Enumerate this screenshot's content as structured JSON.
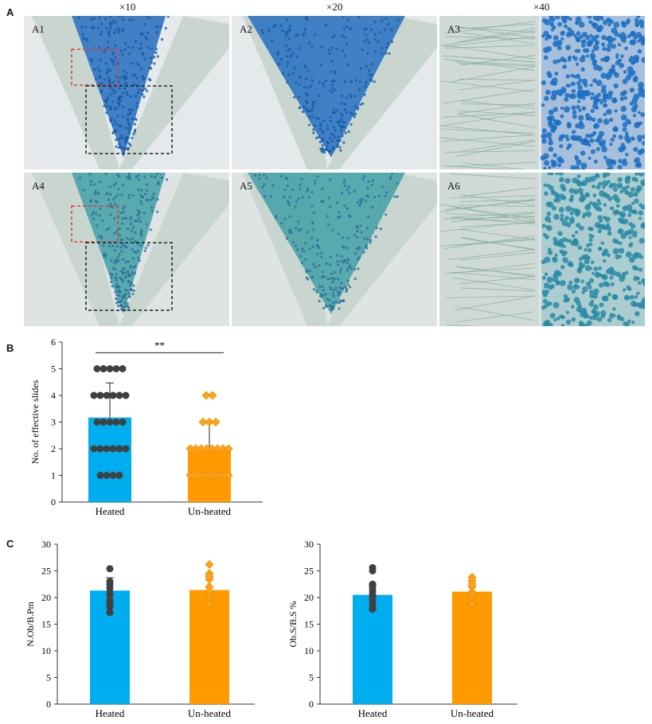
{
  "panel_labels": {
    "a": "A",
    "b": "B",
    "c": "C"
  },
  "magnifications": [
    "×10",
    "×20",
    "×40"
  ],
  "micrographs": [
    {
      "label": "A1",
      "stain": "blue",
      "scale": "low",
      "boxes": true
    },
    {
      "label": "A2",
      "stain": "blue",
      "scale": "mid",
      "boxes": false
    },
    {
      "label": "A3",
      "stain": "blue",
      "scale": "high",
      "boxes": false
    },
    {
      "label": "A4",
      "stain": "teal",
      "scale": "low",
      "boxes": true
    },
    {
      "label": "A5",
      "stain": "teal",
      "scale": "mid",
      "boxes": false
    },
    {
      "label": "A6",
      "stain": "teal",
      "scale": "high",
      "boxes": false
    }
  ],
  "colors": {
    "heated": "#00adef",
    "unheated": "#ff9a00",
    "heated_points": "#404040",
    "unheated_points": "#ffa31a",
    "tissue_blue": "#2f74c0",
    "tissue_teal": "#4aa3a8",
    "box_red": "#e53935",
    "box_black": "#222222"
  },
  "chart_data": [
    {
      "panel": "B",
      "type": "bar",
      "categories": [
        "Heated",
        "Un-heated"
      ],
      "values": [
        3.17,
        1.92
      ],
      "sd": [
        1.3,
        1.1
      ],
      "ylabel": "No. of effective slides",
      "ylim": [
        0,
        6
      ],
      "yticks": [
        "0",
        "1",
        "2",
        "3",
        "4",
        "5",
        "6"
      ],
      "significance": "**",
      "points": [
        [
          5,
          5,
          5,
          5,
          5,
          4,
          4,
          4,
          4,
          4,
          4,
          3,
          3,
          3,
          3,
          3,
          2,
          2,
          2,
          2,
          2,
          2,
          1,
          1,
          1,
          1
        ],
        [
          4,
          4,
          3,
          3,
          3,
          2,
          2,
          2,
          2,
          2,
          2,
          2,
          2,
          1,
          1,
          1,
          1,
          1,
          1,
          1,
          1,
          1,
          1,
          1,
          1,
          1
        ]
      ],
      "grid": false
    },
    {
      "panel": "C-left",
      "type": "bar",
      "categories": [
        "Heated",
        "Un-heated"
      ],
      "values": [
        21.3,
        21.4
      ],
      "sd": [
        2.4,
        2.5
      ],
      "ylabel": "N.Ob/B.Pm",
      "ylim": [
        0,
        30
      ],
      "yticks": [
        "0",
        "5",
        "10",
        "15",
        "20",
        "25",
        "30"
      ],
      "points": [
        [
          25.4,
          23.0,
          22.5,
          21.8,
          21.0,
          20.5,
          19.5,
          18.2,
          17.2,
          19.0
        ],
        [
          26.2,
          24.5,
          23.4,
          22.0,
          21.0,
          21.2,
          20.0,
          19.5,
          18.8,
          24.0
        ]
      ],
      "grid": false
    },
    {
      "panel": "C-right",
      "type": "bar",
      "categories": [
        "Heated",
        "Un-heated"
      ],
      "values": [
        20.5,
        21.1
      ],
      "sd": [
        2.0,
        2.0
      ],
      "ylabel": "Ob.S/B.S %",
      "ylim": [
        0,
        30
      ],
      "yticks": [
        "0",
        "5",
        "10",
        "15",
        "20",
        "25",
        "30"
      ],
      "points": [
        [
          25.6,
          25.0,
          22.5,
          22.0,
          21.5,
          20.5,
          20.0,
          19.5,
          18.8,
          18.0,
          17.8,
          21.0
        ],
        [
          23.8,
          23.2,
          22.0,
          21.0,
          20.0,
          19.0,
          18.8,
          22.5,
          20.8
        ]
      ],
      "grid": false
    }
  ]
}
